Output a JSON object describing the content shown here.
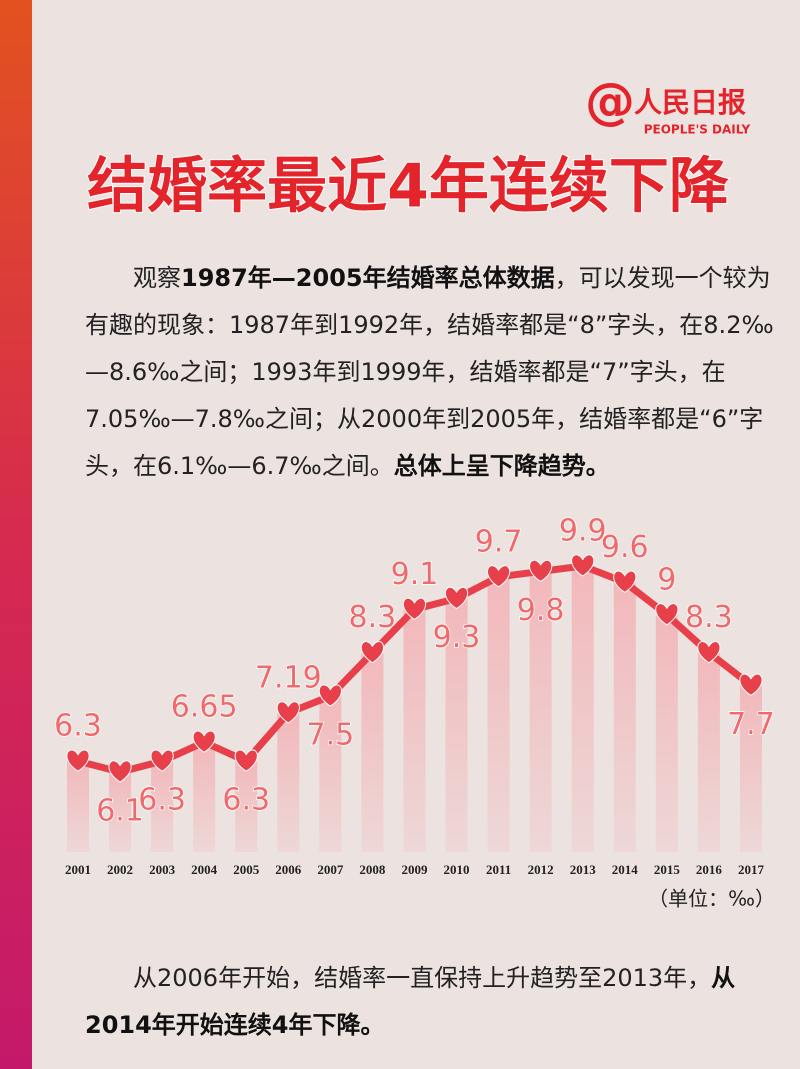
{
  "logo": {
    "name": "人民日报",
    "english": "PEOPLE'S DAILY"
  },
  "intro": [
    "观察",
    "1987年—2005年结婚率总体数据",
    "，可以发现一个较为有趣的现象：1987年到1992年，结婚率都是“8”字头，在8.2‰—8.6‰之间；1993年到1999年，结婚率都是“7”字头，在7.05‰—7.8‰之间；从2000年到2005年，结婚率都是“6”字头，在6.1‰—6.7‰之间。",
    "总体上呈下降趋势。"
  ],
  "chart_data": {
    "type": "line",
    "title": "结婚率最近4年连续下降",
    "categories": [
      "2001",
      "2002",
      "2003",
      "2004",
      "2005",
      "2006",
      "2007",
      "2008",
      "2009",
      "2010",
      "2011",
      "2012",
      "2013",
      "2014",
      "2015",
      "2016",
      "2017"
    ],
    "values": [
      6.3,
      6.1,
      6.3,
      6.65,
      6.3,
      7.19,
      7.5,
      8.3,
      9.1,
      9.3,
      9.7,
      9.8,
      9.9,
      9.6,
      9,
      8.3,
      7.7
    ],
    "color": "#e8404a",
    "unit": "（单位：‰）"
  },
  "outro": [
    "从2006年开始，结婚率一直保持上升趋势至2013年，",
    "从2014年开始连续4年下降。"
  ]
}
